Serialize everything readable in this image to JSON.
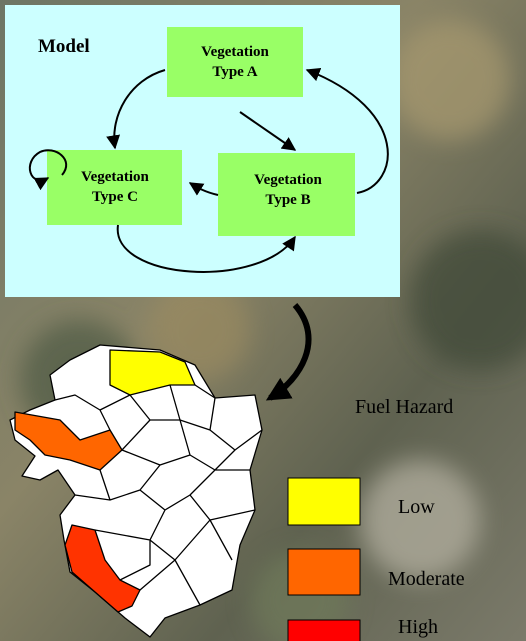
{
  "model": {
    "title": "Model",
    "nodes": [
      {
        "label": [
          "Vegetation",
          "Type A"
        ]
      },
      {
        "label": [
          "Vegetation",
          "Type B"
        ]
      },
      {
        "label": [
          "Vegetation",
          "Type C"
        ]
      }
    ]
  },
  "legend": {
    "title": "Fuel Hazard",
    "items": [
      {
        "label": "Low"
      },
      {
        "label": "Moderate"
      },
      {
        "label": "High"
      }
    ]
  }
}
